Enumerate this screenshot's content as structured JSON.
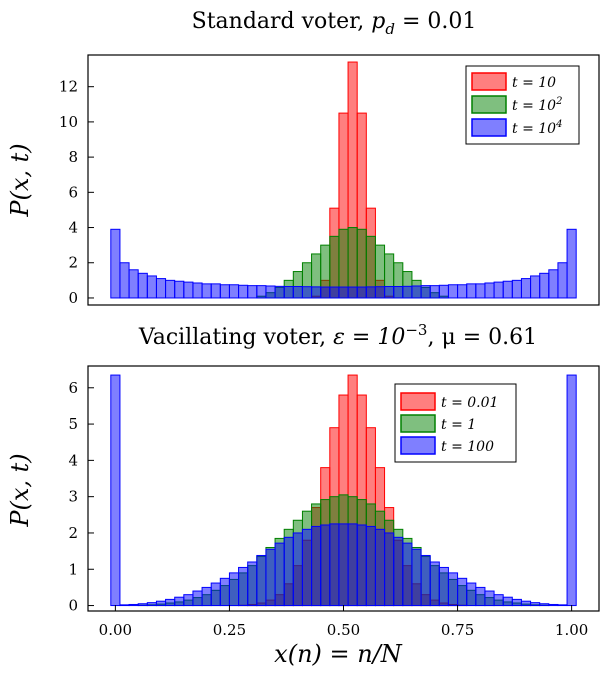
{
  "chart_data": [
    {
      "type": "bar",
      "title": "Standard voter,  p_d = 0.01",
      "title_main": "Standard voter,  ",
      "title_math": "p",
      "title_sub": "d",
      "title_tail": " = 0.01",
      "ylabel": "P(x, t)",
      "xlabel": "",
      "xlim": [
        -0.06,
        1.06
      ],
      "ylim": [
        -0.4,
        13.8
      ],
      "yticks": [
        "0",
        "2",
        "4",
        "6",
        "8",
        "10",
        "12"
      ],
      "ytick_values": [
        0,
        2,
        4,
        6,
        8,
        10,
        12
      ],
      "grid": false,
      "legend_position": "top-right",
      "bin_width": 0.02,
      "bin_centers": [
        0.0,
        0.02,
        0.04,
        0.06,
        0.08,
        0.1,
        0.12,
        0.14,
        0.16,
        0.18,
        0.2,
        0.22,
        0.24,
        0.26,
        0.28,
        0.3,
        0.32,
        0.34,
        0.36,
        0.38,
        0.4,
        0.42,
        0.44,
        0.46,
        0.48,
        0.5,
        0.52,
        0.54,
        0.56,
        0.58,
        0.6,
        0.62,
        0.64,
        0.66,
        0.68,
        0.7,
        0.72,
        0.74,
        0.76,
        0.78,
        0.8,
        0.82,
        0.84,
        0.86,
        0.88,
        0.9,
        0.92,
        0.94,
        0.96,
        0.98,
        1.0
      ],
      "series": [
        {
          "name": "t = 10",
          "color": "#ff0000",
          "values": [
            0,
            0,
            0,
            0,
            0,
            0,
            0,
            0,
            0,
            0,
            0,
            0,
            0,
            0,
            0,
            0,
            0,
            0,
            0,
            0,
            0,
            0,
            0.1,
            1.0,
            5.1,
            10.5,
            13.4,
            10.5,
            5.1,
            1.0,
            0.1,
            0,
            0,
            0,
            0,
            0,
            0,
            0,
            0,
            0,
            0,
            0,
            0,
            0,
            0,
            0,
            0,
            0,
            0,
            0,
            0
          ]
        },
        {
          "name": "t = 10^2",
          "color": "#008000",
          "values": [
            0,
            0,
            0,
            0,
            0,
            0,
            0,
            0,
            0,
            0,
            0,
            0,
            0,
            0,
            0,
            0,
            0.1,
            0.3,
            0.6,
            1.0,
            1.5,
            2.0,
            2.5,
            3.0,
            3.5,
            3.9,
            4.0,
            3.9,
            3.5,
            3.0,
            2.5,
            2.0,
            1.5,
            1.0,
            0.6,
            0.3,
            0.1,
            0,
            0,
            0,
            0,
            0,
            0,
            0,
            0,
            0,
            0,
            0,
            0,
            0,
            0
          ]
        },
        {
          "name": "t = 10^4",
          "color": "#0000ff",
          "values": [
            3.9,
            2.0,
            1.6,
            1.4,
            1.25,
            1.1,
            1.0,
            0.95,
            0.9,
            0.85,
            0.8,
            0.8,
            0.75,
            0.75,
            0.72,
            0.7,
            0.7,
            0.68,
            0.66,
            0.65,
            0.65,
            0.64,
            0.63,
            0.62,
            0.62,
            0.62,
            0.62,
            0.62,
            0.63,
            0.64,
            0.65,
            0.65,
            0.66,
            0.68,
            0.7,
            0.7,
            0.72,
            0.75,
            0.75,
            0.8,
            0.8,
            0.85,
            0.9,
            0.95,
            1.0,
            1.1,
            1.25,
            1.4,
            1.6,
            2.0,
            3.9
          ]
        }
      ]
    },
    {
      "type": "bar",
      "title": "Vacillating voter,  ε = 10^−3, μ = 0.61",
      "title_main": "Vacillating voter,  ",
      "title_eps": "ε = 10",
      "title_sup": "−3",
      "title_tail": ", μ = 0.61",
      "ylabel": "P(x, t)",
      "xlabel": "x(n) = n/N",
      "xlim": [
        -0.06,
        1.06
      ],
      "ylim": [
        -0.15,
        6.6
      ],
      "yticks": [
        "0",
        "1",
        "2",
        "3",
        "4",
        "5",
        "6"
      ],
      "ytick_values": [
        0,
        1,
        2,
        3,
        4,
        5,
        6
      ],
      "xticks": [
        "0.00",
        "0.25",
        "0.50",
        "0.75",
        "1.00"
      ],
      "xtick_values": [
        0,
        0.25,
        0.5,
        0.75,
        1.0
      ],
      "grid": false,
      "legend_position": "top-right",
      "bin_width": 0.02,
      "bin_centers": [
        0.0,
        0.02,
        0.04,
        0.06,
        0.08,
        0.1,
        0.12,
        0.14,
        0.16,
        0.18,
        0.2,
        0.22,
        0.24,
        0.26,
        0.28,
        0.3,
        0.32,
        0.34,
        0.36,
        0.38,
        0.4,
        0.42,
        0.44,
        0.46,
        0.48,
        0.5,
        0.52,
        0.54,
        0.56,
        0.58,
        0.6,
        0.62,
        0.64,
        0.66,
        0.68,
        0.7,
        0.72,
        0.74,
        0.76,
        0.78,
        0.8,
        0.82,
        0.84,
        0.86,
        0.88,
        0.9,
        0.92,
        0.94,
        0.96,
        0.98,
        1.0
      ],
      "series": [
        {
          "name": "t = 0.01",
          "color": "#ff0000",
          "values": [
            0,
            0,
            0,
            0,
            0,
            0,
            0,
            0,
            0,
            0,
            0,
            0,
            0,
            0,
            0.01,
            0.03,
            0.07,
            0.15,
            0.3,
            0.6,
            1.1,
            1.8,
            2.7,
            3.8,
            4.9,
            5.8,
            6.35,
            5.8,
            4.9,
            3.8,
            2.7,
            1.8,
            1.1,
            0.6,
            0.3,
            0.15,
            0.07,
            0.03,
            0.01,
            0,
            0,
            0,
            0,
            0,
            0,
            0,
            0,
            0,
            0,
            0,
            0
          ]
        },
        {
          "name": "t = 1",
          "color": "#008000",
          "values": [
            0,
            0,
            0,
            0.01,
            0.02,
            0.04,
            0.07,
            0.1,
            0.15,
            0.22,
            0.3,
            0.42,
            0.55,
            0.72,
            0.9,
            1.1,
            1.35,
            1.6,
            1.85,
            2.1,
            2.35,
            2.6,
            2.8,
            2.92,
            3.0,
            3.05,
            3.0,
            2.92,
            2.8,
            2.6,
            2.35,
            2.1,
            1.85,
            1.6,
            1.35,
            1.1,
            0.9,
            0.72,
            0.55,
            0.42,
            0.3,
            0.22,
            0.15,
            0.1,
            0.07,
            0.04,
            0.02,
            0.01,
            0,
            0,
            0
          ]
        },
        {
          "name": "t = 100",
          "color": "#0000ff",
          "values": [
            6.35,
            0.02,
            0.03,
            0.05,
            0.08,
            0.12,
            0.17,
            0.23,
            0.3,
            0.4,
            0.5,
            0.62,
            0.75,
            0.9,
            1.05,
            1.2,
            1.38,
            1.55,
            1.72,
            1.88,
            2.0,
            2.1,
            2.18,
            2.22,
            2.25,
            2.25,
            2.25,
            2.22,
            2.18,
            2.1,
            2.0,
            1.88,
            1.72,
            1.55,
            1.38,
            1.2,
            1.05,
            0.9,
            0.75,
            0.62,
            0.5,
            0.4,
            0.3,
            0.23,
            0.17,
            0.12,
            0.08,
            0.05,
            0.03,
            0.02,
            6.35
          ]
        }
      ]
    }
  ]
}
